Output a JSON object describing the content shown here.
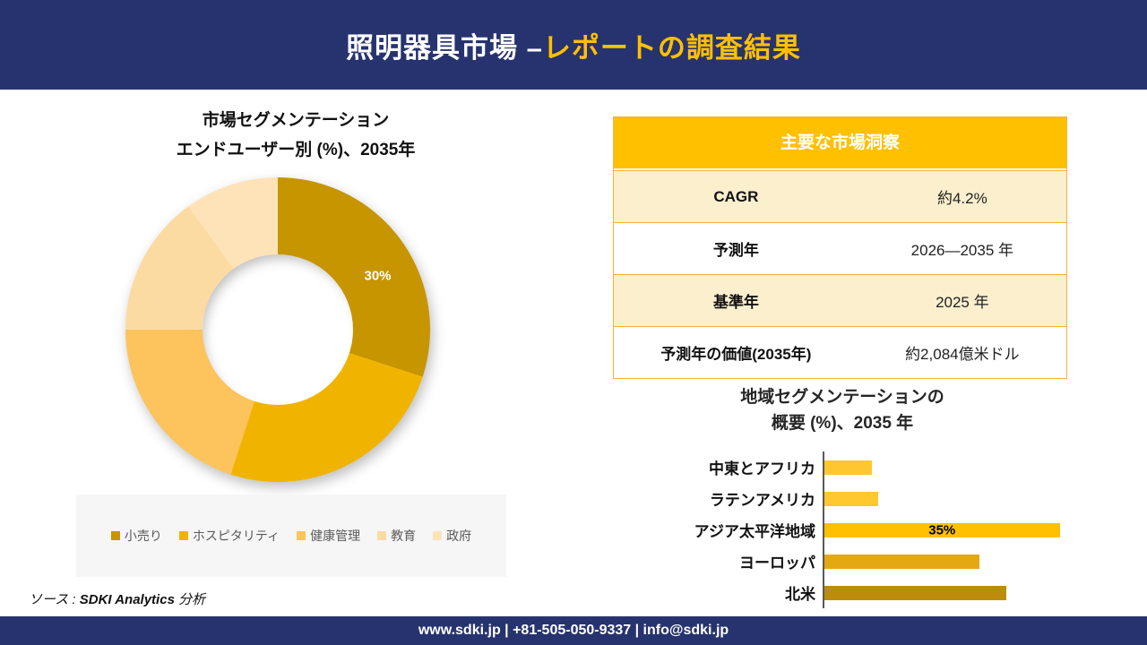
{
  "header": {
    "title_white": "照明器具市場 –",
    "title_accent": "レポートの調査結果"
  },
  "donut_section": {
    "title_line1": "市場セグメンテーション",
    "title_line2": "エンドユーザー別 (%)、2035年"
  },
  "insights_table": {
    "header": "主要な市場洞察",
    "rows": [
      {
        "label": "CAGR",
        "value": "約4.2%"
      },
      {
        "label": "予測年",
        "value": "2026—2035 年"
      },
      {
        "label": "基準年",
        "value": "2025 年"
      },
      {
        "label": "予測年の価値(2035年)",
        "value": "約2,084億米ドル"
      }
    ]
  },
  "bar_section": {
    "title_line1": "地域セグメンテーションの",
    "title_line2": "概要 (%)、2035 年"
  },
  "source": {
    "prefix": "ソース : ",
    "brand": "SDKI Analytics",
    "suffix": " 分析"
  },
  "footer": {
    "text": "www.sdki.jp | +81-505-050-9337 | info@sdki.jp"
  },
  "colors": {
    "navy": "#27336E",
    "accent_amber": "#FFC000",
    "table_cream_row": "#FCEFCE",
    "table_border": "#F1B434",
    "legend_bg": "#F6F6F6"
  },
  "chart_data": [
    {
      "type": "pie",
      "subtype": "donut",
      "title": "市場セグメンテーション エンドユーザー別 (%)、2035年",
      "categories": [
        "小売り",
        "ホスピタリティ",
        "健康管理",
        "教育",
        "政府"
      ],
      "values": [
        30,
        25,
        20,
        15,
        10
      ],
      "colors": [
        "#C69500",
        "#F0B400",
        "#FDC35C",
        "#FCDBA2",
        "#FEE3B8"
      ],
      "data_labels": [
        "30%",
        "",
        "",
        "",
        ""
      ],
      "legend_position": "bottom",
      "start_angle_deg": 0
    },
    {
      "type": "bar",
      "orientation": "horizontal",
      "title": "地域セグメンテーションの 概要 (%)、2035 年",
      "categories": [
        "中東とアフリカ",
        "ラテンアメリカ",
        "アジア太平洋地域",
        "ヨーロッパ",
        "北米"
      ],
      "values": [
        7,
        8,
        35,
        23,
        27
      ],
      "colors": [
        "#FFC72F",
        "#FFC82F",
        "#FFC000",
        "#E3A812",
        "#BC8D0B"
      ],
      "data_labels": [
        "",
        "",
        "35%",
        "",
        ""
      ],
      "xlim": [
        0,
        38
      ],
      "grid": false,
      "legend_position": "none"
    }
  ]
}
